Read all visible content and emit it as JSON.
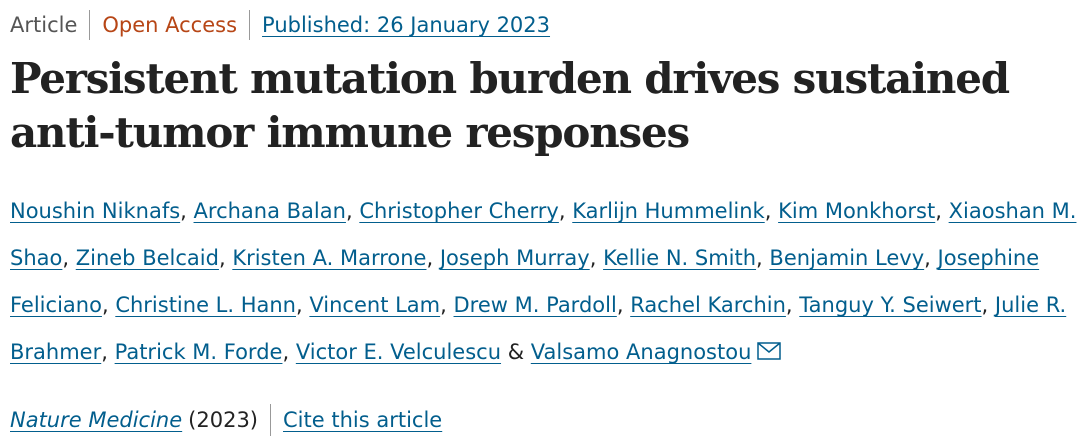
{
  "header": {
    "article_type": "Article",
    "access": "Open Access",
    "published": "Published: 26 January 2023"
  },
  "title": "Persistent mutation burden drives sustained anti-tumor immune responses",
  "authors": {
    "names": [
      "Noushin Niknafs",
      "Archana Balan",
      "Christopher Cherry",
      "Karlijn Hummelink",
      "Kim Monkhorst",
      "Xiaoshan M. Shao",
      "Zineb Belcaid",
      "Kristen A. Marrone",
      "Joseph Murray",
      "Kellie N. Smith",
      "Benjamin Levy",
      "Josephine Feliciano",
      "Christine L. Hann",
      "Vincent Lam",
      "Drew M. Pardoll",
      "Rachel Karchin",
      "Tanguy Y. Seiwert",
      "Julie R. Brahmer",
      "Patrick M. Forde",
      "Victor E. Velculescu",
      "Valsamo Anagnostou"
    ],
    "separator": ",",
    "final_separator": "&"
  },
  "citation": {
    "journal": "Nature Medicine",
    "year": "(2023)",
    "cite_link": "Cite this article"
  }
}
